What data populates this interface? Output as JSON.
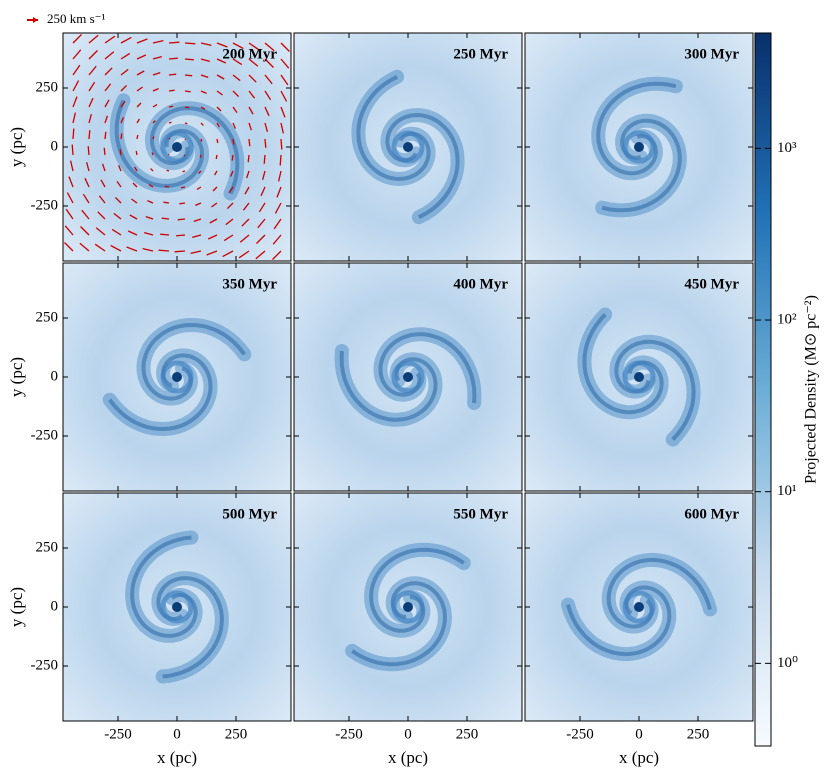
{
  "chart_data": {
    "type": "image-grid",
    "xlabel": "x (pc)",
    "ylabel": "y (pc)",
    "xlim": [
      -483,
      483
    ],
    "ylim": [
      -483,
      483
    ],
    "xticks": [
      -250,
      0,
      250
    ],
    "yticks": [
      -250,
      0,
      250
    ],
    "panels": [
      "200 Myr",
      "250 Myr",
      "300 Myr",
      "350 Myr",
      "400 Myr",
      "450 Myr",
      "500 Myr",
      "550 Myr",
      "600 Myr"
    ],
    "legend": "250 km s⁻¹",
    "colorbar": {
      "label": "Projected Density (M⊙ pc⁻²)",
      "scale": "log",
      "lim": [
        0.33,
        4700
      ],
      "ticks": [
        {
          "value": 1,
          "label": "10⁰"
        },
        {
          "value": 10,
          "label": "10¹"
        },
        {
          "value": 100,
          "label": "10²"
        },
        {
          "value": 1000,
          "label": "10³"
        }
      ],
      "colors": [
        "#f7fbff",
        "#c6dbef",
        "#6baed6",
        "#2171b5",
        "#08306b"
      ]
    }
  }
}
